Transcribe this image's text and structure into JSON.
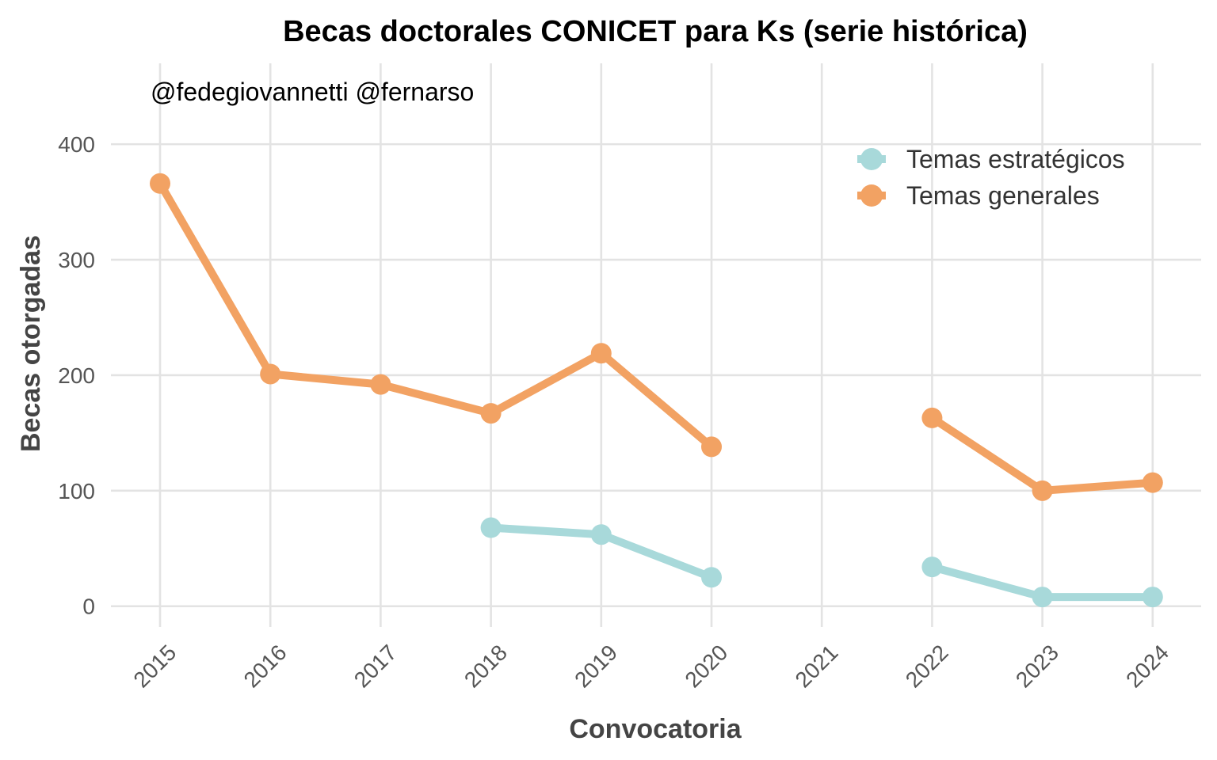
{
  "chart_data": {
    "type": "line",
    "title": "Becas doctorales CONICET para Ks (serie histórica)",
    "annotation": "@fedegiovannetti @fernarso",
    "xlabel": "Convocatoria",
    "ylabel": "Becas otorgadas",
    "categories": [
      "2015",
      "2016",
      "2017",
      "2018",
      "2019",
      "2020",
      "2021",
      "2022",
      "2023",
      "2024"
    ],
    "yticks": [
      0,
      100,
      200,
      300,
      400
    ],
    "ylim": [
      -18,
      470
    ],
    "grid": true,
    "legend_position": "top-right",
    "series": [
      {
        "name": "Temas estratégicos",
        "color": "#a8d9da",
        "values": [
          null,
          null,
          null,
          68,
          62,
          25,
          null,
          34,
          8,
          8
        ]
      },
      {
        "name": "Temas generales",
        "color": "#f2a263",
        "values": [
          366,
          201,
          192,
          167,
          219,
          138,
          null,
          163,
          100,
          107
        ]
      }
    ]
  }
}
